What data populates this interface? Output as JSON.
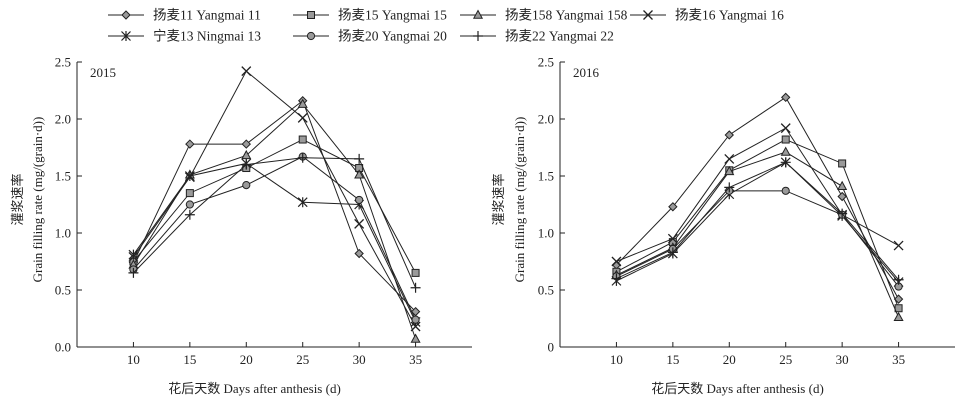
{
  "chart_data": [
    {
      "type": "line",
      "title": "2015",
      "xlabel": "花后天数 Days after anthesis (d)",
      "ylabel_cn": "灌浆速率",
      "ylabel_en": "Grain filling rate (mg/(grain·d))",
      "x": [
        10,
        15,
        20,
        25,
        30,
        35
      ],
      "xlim": [
        5,
        40
      ],
      "ylim": [
        0,
        2.5
      ],
      "yticks": [
        "0.0",
        "0.5",
        "1.0",
        "1.5",
        "2.0",
        "2.5"
      ],
      "grid": false,
      "series": [
        {
          "name": "扬麦11 Yangmai 11",
          "marker": "diamond",
          "values": [
            0.74,
            1.78,
            1.78,
            2.16,
            0.82,
            0.31
          ]
        },
        {
          "name": "扬麦15 Yangmai 15",
          "marker": "square",
          "values": [
            0.75,
            1.35,
            1.57,
            1.82,
            1.57,
            0.65
          ]
        },
        {
          "name": "扬麦158 Yangmai 158",
          "marker": "triangle",
          "values": [
            0.72,
            1.51,
            1.68,
            2.13,
            1.51,
            0.07
          ]
        },
        {
          "name": "扬麦16 Yangmai 16",
          "marker": "x",
          "values": [
            0.79,
            1.49,
            2.42,
            2.01,
            1.08,
            0.18
          ]
        },
        {
          "name": "宁麦13 Ningmai 13",
          "marker": "star",
          "values": [
            0.81,
            1.5,
            1.61,
            1.27,
            1.25,
            0.22
          ]
        },
        {
          "name": "扬麦20 Yangmai 20",
          "marker": "circle",
          "values": [
            0.68,
            1.25,
            1.42,
            1.67,
            1.29,
            0.24
          ]
        },
        {
          "name": "扬麦22 Yangmai 22",
          "marker": "plus",
          "values": [
            0.65,
            1.16,
            1.6,
            1.66,
            1.65,
            0.52
          ]
        }
      ]
    },
    {
      "type": "line",
      "title": "2016",
      "xlabel": "花后天数 Days after anthesis (d)",
      "ylabel_cn": "灌浆速率",
      "ylabel_en": "Grain filling rate (mg/(grain·d))",
      "x": [
        10,
        15,
        20,
        25,
        30,
        35
      ],
      "xlim": [
        5,
        40
      ],
      "ylim": [
        0,
        2.5
      ],
      "yticks": [
        "0",
        "0.5",
        "1.0",
        "1.5",
        "2.0",
        "2.5"
      ],
      "grid": false,
      "series": [
        {
          "name": "扬麦11 Yangmai 11",
          "marker": "diamond",
          "values": [
            0.72,
            1.23,
            1.86,
            2.19,
            1.32,
            0.42
          ]
        },
        {
          "name": "扬麦15 Yangmai 15",
          "marker": "square",
          "values": [
            0.66,
            0.92,
            1.55,
            1.82,
            1.61,
            0.34
          ]
        },
        {
          "name": "扬麦158 Yangmai 158",
          "marker": "triangle",
          "values": [
            0.63,
            0.87,
            1.54,
            1.71,
            1.41,
            0.26
          ]
        },
        {
          "name": "扬麦16 Yangmai 16",
          "marker": "x",
          "values": [
            0.75,
            0.95,
            1.65,
            1.92,
            1.16,
            0.89
          ]
        },
        {
          "name": "宁麦13 Ningmai 13",
          "marker": "star",
          "values": [
            0.58,
            0.82,
            1.34,
            1.62,
            1.15,
            0.57
          ]
        },
        {
          "name": "扬麦20 Yangmai 20",
          "marker": "circle",
          "values": [
            0.62,
            0.86,
            1.37,
            1.37,
            1.16,
            0.53
          ]
        },
        {
          "name": "扬麦22 Yangmai 22",
          "marker": "plus",
          "values": [
            0.6,
            0.83,
            1.4,
            1.62,
            1.17,
            0.59
          ]
        }
      ]
    }
  ],
  "legend": {
    "placement": "top",
    "items": [
      {
        "label": "扬麦11 Yangmai 11",
        "marker": "diamond"
      },
      {
        "label": "扬麦15 Yangmai 15",
        "marker": "square"
      },
      {
        "label": "扬麦158 Yangmai 158",
        "marker": "triangle"
      },
      {
        "label": "扬麦16 Yangmai 16",
        "marker": "x"
      },
      {
        "label": "宁麦13 Ningmai 13",
        "marker": "star"
      },
      {
        "label": "扬麦20 Yangmai 20",
        "marker": "circle"
      },
      {
        "label": "扬麦22 Yangmai 22",
        "marker": "plus"
      }
    ]
  },
  "colors": {
    "line": "#222222",
    "marker_fill": "#9a9a9a",
    "background": "#ffffff"
  }
}
